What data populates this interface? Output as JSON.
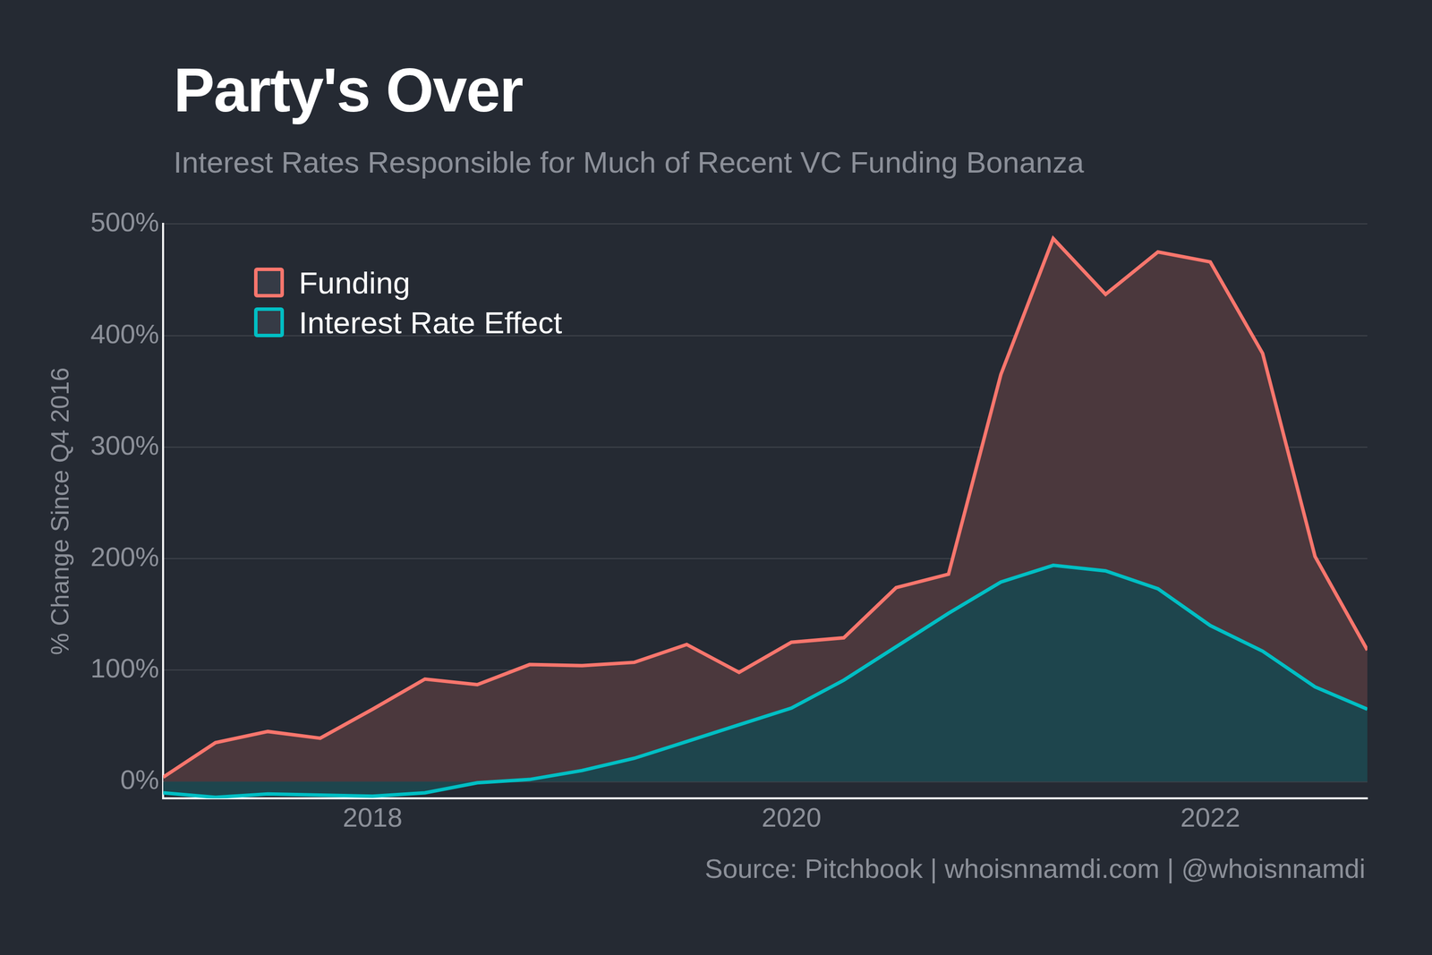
{
  "chart_data": {
    "type": "line",
    "title": "Party's Over",
    "subtitle": "Interest Rates Responsible for Much of Recent VC Funding Bonanza",
    "y_label": "% Change Since Q4 2016",
    "source": "Source: Pitchbook | whoisnnamdi.com | @whoisnnamdi",
    "x": [
      2017,
      2017.25,
      2017.5,
      2017.75,
      2018,
      2018.25,
      2018.5,
      2018.75,
      2019,
      2019.25,
      2019.5,
      2019.75,
      2020,
      2020.25,
      2020.5,
      2020.75,
      2021,
      2021.25,
      2021.5,
      2021.75,
      2022,
      2022.25,
      2022.5,
      2022.75
    ],
    "series": [
      {
        "name": "Funding",
        "color": "#f8766d",
        "values": [
          4,
          35,
          45,
          39,
          65,
          92,
          87,
          105,
          104,
          107,
          123,
          98,
          125,
          129,
          174,
          186,
          365,
          487,
          437,
          475,
          466,
          384,
          202,
          118
        ]
      },
      {
        "name": "Interest Rate Effect",
        "color": "#00bfc4",
        "values": [
          -10,
          -14,
          -11,
          -12,
          -13,
          -10,
          -1,
          2,
          10,
          21,
          36,
          51,
          66,
          91,
          121,
          151,
          179,
          194,
          189,
          173,
          140,
          117,
          85,
          65
        ]
      }
    ],
    "xlim": [
      2017,
      2022.75
    ],
    "xticks": [
      2018,
      2020,
      2022
    ],
    "ylim": [
      -15,
      500
    ],
    "yticks": [
      {
        "value": 0,
        "label": "0%"
      },
      {
        "value": 100,
        "label": "100%"
      },
      {
        "value": 200,
        "label": "200%"
      },
      {
        "value": 300,
        "label": "300%"
      },
      {
        "value": 400,
        "label": "400%"
      },
      {
        "value": 500,
        "label": "500%"
      }
    ],
    "grid": true,
    "legend": "top-left"
  }
}
